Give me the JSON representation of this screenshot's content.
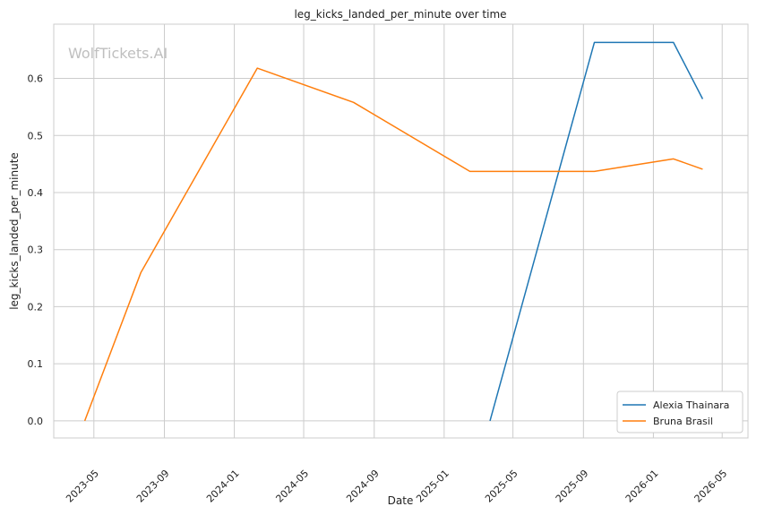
{
  "chart_data": {
    "type": "line",
    "title": "leg_kicks_landed_per_minute over time",
    "xlabel": "Date",
    "ylabel": "leg_kicks_landed_per_minute",
    "watermark": "WolfTickets.AI",
    "xlim": [
      "2023-02-20",
      "2026-06-15"
    ],
    "ylim": [
      -0.03,
      0.695
    ],
    "x_ticks": [
      "2023-05-01",
      "2023-09-01",
      "2024-01-01",
      "2024-05-01",
      "2024-09-01",
      "2025-01-01",
      "2025-05-01",
      "2025-09-01",
      "2026-01-01",
      "2026-05-01"
    ],
    "x_tick_labels": [
      "2023-05",
      "2023-09",
      "2024-01",
      "2024-05",
      "2024-09",
      "2025-01",
      "2025-05",
      "2025-09",
      "2026-01",
      "2026-05"
    ],
    "y_ticks": [
      0.0,
      0.1,
      0.2,
      0.3,
      0.4,
      0.5,
      0.6
    ],
    "y_tick_labels": [
      "0.0",
      "0.1",
      "0.2",
      "0.3",
      "0.4",
      "0.5",
      "0.6"
    ],
    "grid": true,
    "legend_position": "bottom-right",
    "series": [
      {
        "name": "Alexia Thainara",
        "color": "#1f77b4",
        "points": [
          {
            "x": "2025-03-22",
            "y": 0.0
          },
          {
            "x": "2025-09-20",
            "y": 0.663
          },
          {
            "x": "2026-02-05",
            "y": 0.663
          },
          {
            "x": "2026-03-28",
            "y": 0.564
          }
        ]
      },
      {
        "name": "Bruna Brasil",
        "color": "#ff7f0e",
        "points": [
          {
            "x": "2023-04-15",
            "y": 0.0
          },
          {
            "x": "2023-07-22",
            "y": 0.26
          },
          {
            "x": "2024-02-10",
            "y": 0.618
          },
          {
            "x": "2024-07-27",
            "y": 0.558
          },
          {
            "x": "2025-02-15",
            "y": 0.437
          },
          {
            "x": "2025-09-20",
            "y": 0.437
          },
          {
            "x": "2026-02-05",
            "y": 0.459
          },
          {
            "x": "2026-03-28",
            "y": 0.441
          }
        ]
      }
    ]
  }
}
